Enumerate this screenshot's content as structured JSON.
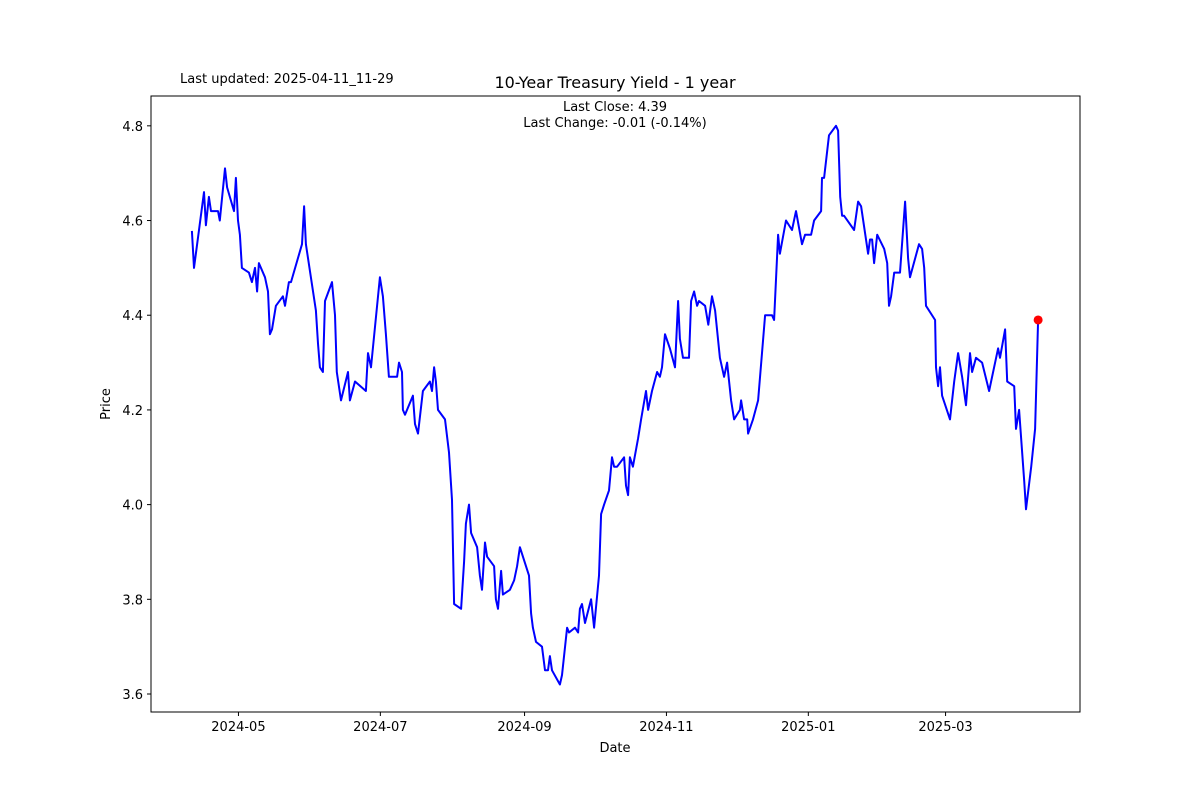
{
  "chart_data": {
    "type": "line",
    "title": "10-Year Treasury Yield - 1 year",
    "updated_label": "Last updated: 2025-04-11_11-29",
    "annotations": [
      "Last Close: 4.39",
      "Last Change: -0.01 (-0.14%)"
    ],
    "xlabel": "Date",
    "ylabel": "Price",
    "x_start_date": "2024-04-11",
    "x_unit": "days since start date",
    "xlim": [
      -17.6,
      381.8
    ],
    "ylim": [
      3.562,
      4.863
    ],
    "grid": false,
    "x_ticks": [
      {
        "label": "2024-05",
        "value": 20
      },
      {
        "label": "2024-07",
        "value": 81
      },
      {
        "label": "2024-09",
        "value": 143
      },
      {
        "label": "2024-11",
        "value": 204
      },
      {
        "label": "2025-01",
        "value": 265
      },
      {
        "label": "2025-03",
        "value": 324
      }
    ],
    "y_ticks": [
      {
        "label": "3.6",
        "value": 3.6
      },
      {
        "label": "3.8",
        "value": 3.8
      },
      {
        "label": "4.0",
        "value": 4.0
      },
      {
        "label": "4.2",
        "value": 4.2
      },
      {
        "label": "4.4",
        "value": 4.4
      },
      {
        "label": "4.6",
        "value": 4.6
      },
      {
        "label": "4.8",
        "value": 4.8
      }
    ],
    "series": [
      {
        "name": "10-Year Treasury Yield",
        "color": "#0000ff",
        "x": [
          0,
          0.9,
          5.2,
          6.0,
          7.3,
          8.2,
          11.2,
          12.0,
          14.2,
          15.1,
          18.1,
          18.9,
          19.8,
          20.6,
          21.5,
          24.5,
          25.8,
          27.1,
          28.0,
          28.8,
          31.4,
          32.7,
          33.5,
          34.4,
          36.1,
          39.1,
          40.0,
          41.7,
          42.6,
          47.3,
          48.2,
          49.0,
          53.3,
          54.2,
          55.0,
          56.3,
          57.2,
          60.2,
          61.5,
          62.3,
          64.1,
          67.1,
          67.9,
          70.1,
          74.8,
          75.7,
          77.0,
          80.8,
          82.1,
          83.4,
          84.7,
          88.2,
          89.0,
          90.3,
          90.7,
          91.6,
          95.0,
          95.9,
          97.2,
          99.3,
          102.3,
          103.2,
          104.1,
          104.9,
          105.8,
          108.8,
          110.5,
          111.8,
          112.7,
          115.7,
          117.0,
          117.8,
          119.1,
          120.0,
          122.6,
          123.8,
          124.7,
          126.0,
          126.9,
          129.9,
          130.7,
          131.6,
          132.9,
          133.7,
          136.7,
          138.5,
          139.8,
          141.0,
          144.9,
          145.8,
          146.6,
          147.9,
          150.5,
          151.8,
          153.1,
          153.9,
          154.8,
          158.2,
          159.1,
          161.3,
          162.1,
          164.7,
          166.0,
          166.8,
          167.7,
          169.0,
          171.6,
          172.9,
          175.0,
          175.9,
          177.2,
          179.3,
          180.6,
          181.5,
          182.8,
          185.8,
          186.6,
          187.5,
          188.3,
          189.6,
          191.8,
          193.1,
          195.2,
          196.1,
          197.8,
          200.0,
          201.2,
          202.1,
          203.4,
          205.5,
          207.7,
          209.0,
          209.8,
          211.1,
          213.7,
          214.6,
          215.9,
          217.2,
          218.0,
          220.6,
          222.0,
          223.6,
          224.9,
          227.0,
          228.8,
          230.1,
          231.8,
          233.1,
          235.6,
          236.1,
          237.4,
          238.7,
          239.1,
          241.2,
          243.4,
          245.1,
          246.4,
          249.4,
          250.3,
          252.0,
          252.8,
          255.4,
          258.0,
          259.7,
          262.3,
          263.6,
          266.2,
          267.5,
          270.5,
          270.9,
          271.8,
          273.9,
          276.9,
          277.8,
          278.7,
          279.5,
          280.4,
          284.7,
          286.4,
          287.7,
          290.7,
          291.5,
          292.4,
          293.3,
          294.6,
          297.6,
          298.9,
          299.7,
          300.6,
          301.9,
          304.4,
          306.6,
          307.9,
          308.7,
          312.6,
          313.9,
          314.8,
          315.6,
          319.5,
          319.9,
          320.8,
          321.6,
          322.5,
          325.9,
          327.7,
          329.4,
          331.1,
          332.8,
          334.5,
          335.4,
          337.1,
          339.7,
          342.7,
          346.6,
          347.4,
          349.6,
          350.5,
          353.5,
          354.3,
          355.6,
          357.8,
          358.6,
          360.8,
          362.5,
          363.8
        ],
        "values": [
          4.578,
          4.5,
          4.66,
          4.59,
          4.65,
          4.62,
          4.62,
          4.6,
          4.71,
          4.67,
          4.62,
          4.69,
          4.6,
          4.57,
          4.5,
          4.49,
          4.47,
          4.5,
          4.45,
          4.51,
          4.48,
          4.45,
          4.36,
          4.37,
          4.42,
          4.44,
          4.42,
          4.47,
          4.47,
          4.55,
          4.63,
          4.55,
          4.41,
          4.34,
          4.29,
          4.28,
          4.43,
          4.47,
          4.4,
          4.28,
          4.22,
          4.28,
          4.22,
          4.26,
          4.24,
          4.32,
          4.29,
          4.48,
          4.44,
          4.36,
          4.27,
          4.27,
          4.3,
          4.28,
          4.2,
          4.19,
          4.23,
          4.17,
          4.15,
          4.24,
          4.26,
          4.24,
          4.29,
          4.26,
          4.2,
          4.18,
          4.11,
          4.01,
          3.79,
          3.78,
          3.88,
          3.96,
          4.0,
          3.94,
          3.91,
          3.85,
          3.82,
          3.92,
          3.89,
          3.87,
          3.8,
          3.78,
          3.86,
          3.81,
          3.82,
          3.84,
          3.87,
          3.91,
          3.85,
          3.77,
          3.74,
          3.71,
          3.7,
          3.65,
          3.65,
          3.68,
          3.65,
          3.62,
          3.64,
          3.74,
          3.73,
          3.74,
          3.73,
          3.78,
          3.79,
          3.75,
          3.8,
          3.74,
          3.85,
          3.98,
          4.0,
          4.03,
          4.1,
          4.08,
          4.08,
          4.1,
          4.04,
          4.02,
          4.1,
          4.08,
          4.14,
          4.18,
          4.24,
          4.2,
          4.24,
          4.28,
          4.27,
          4.29,
          4.36,
          4.33,
          4.29,
          4.43,
          4.35,
          4.31,
          4.31,
          4.43,
          4.45,
          4.42,
          4.43,
          4.42,
          4.38,
          4.44,
          4.41,
          4.31,
          4.27,
          4.3,
          4.22,
          4.18,
          4.2,
          4.22,
          4.18,
          4.18,
          4.15,
          4.18,
          4.22,
          4.32,
          4.4,
          4.4,
          4.39,
          4.57,
          4.53,
          4.6,
          4.58,
          4.62,
          4.55,
          4.57,
          4.57,
          4.6,
          4.62,
          4.69,
          4.69,
          4.78,
          4.8,
          4.79,
          4.65,
          4.61,
          4.61,
          4.58,
          4.64,
          4.63,
          4.53,
          4.56,
          4.56,
          4.51,
          4.57,
          4.54,
          4.51,
          4.42,
          4.44,
          4.49,
          4.49,
          4.64,
          4.52,
          4.48,
          4.55,
          4.54,
          4.5,
          4.42,
          4.39,
          4.29,
          4.25,
          4.29,
          4.23,
          4.18,
          4.26,
          4.32,
          4.27,
          4.21,
          4.32,
          4.28,
          4.31,
          4.3,
          4.24,
          4.33,
          4.31,
          4.37,
          4.26,
          4.25,
          4.16,
          4.2,
          4.05,
          3.99,
          4.08,
          4.16,
          4.39
        ]
      }
    ],
    "last_point": {
      "x": 363.8,
      "value": 4.39,
      "color": "#ff0000"
    }
  }
}
